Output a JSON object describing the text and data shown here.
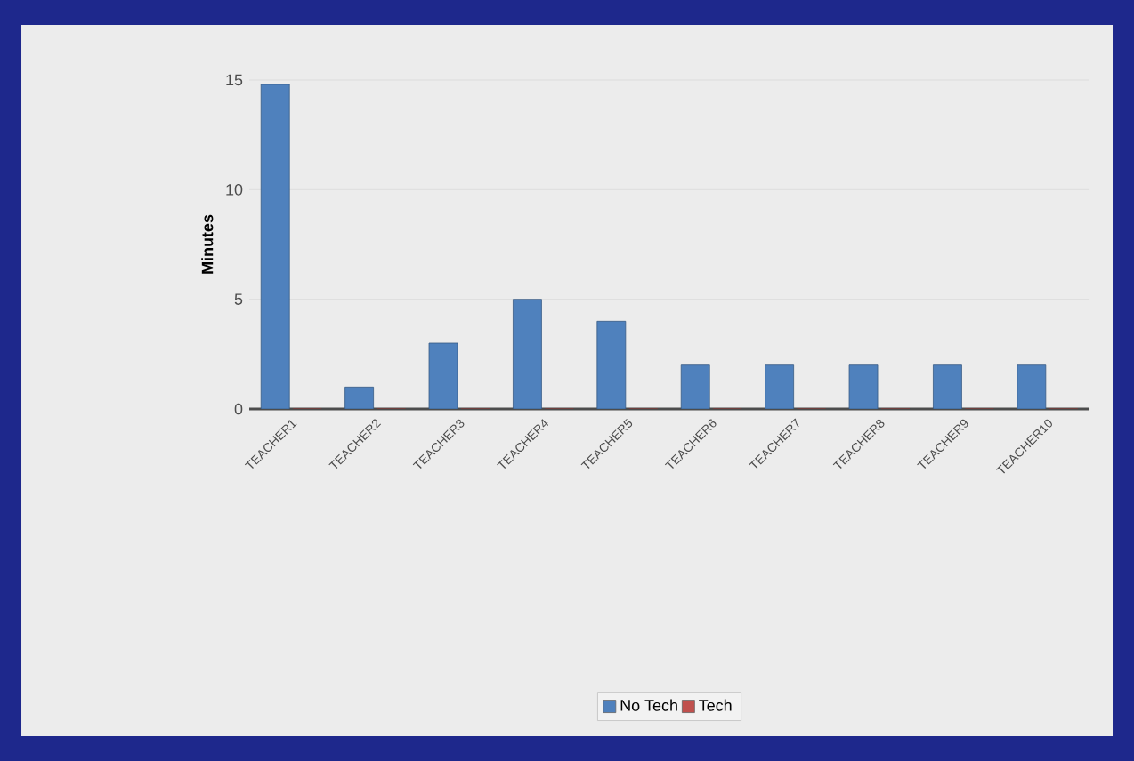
{
  "chart_data": {
    "type": "bar",
    "ylabel": "Minutes",
    "categories": [
      "TEACHER1",
      "TEACHER2",
      "TEACHER3",
      "TEACHER4",
      "TEACHER5",
      "TEACHER6",
      "TEACHER7",
      "TEACHER8",
      "TEACHER9",
      "TEACHER10"
    ],
    "series": [
      {
        "name": "No Tech",
        "color": "#4f81bd",
        "values": [
          14.8,
          1,
          3,
          5,
          4,
          2,
          2,
          2,
          2,
          2
        ]
      },
      {
        "name": "Tech",
        "color": "#c0504d",
        "values": [
          0,
          0,
          0,
          0,
          0,
          0,
          0,
          0,
          0,
          0
        ]
      }
    ],
    "ylim": [
      0,
      15
    ],
    "yticks": [
      0,
      5,
      10,
      15
    ],
    "grid": "y",
    "legend": "bottom"
  }
}
